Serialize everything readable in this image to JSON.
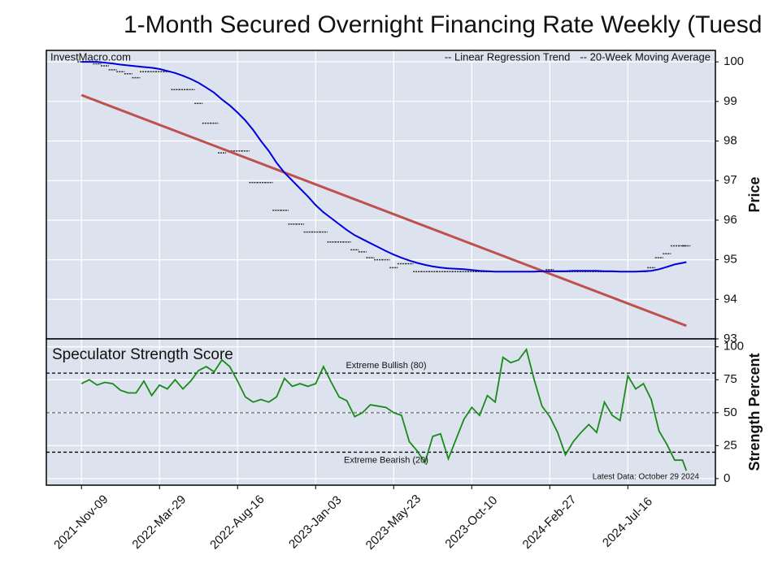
{
  "chart_data": [
    {
      "type": "line",
      "title": "1-Month Secured Overnight Financing Rate Weekly (Tuesd",
      "source": "InvestMacro.com",
      "y_label": "Price",
      "legend": "upper right",
      "grid": true,
      "xlim": [
        "2021-09-07",
        "2024-12-20"
      ],
      "ylim": [
        93,
        100.29
      ],
      "yticks": [
        93,
        94,
        95,
        96,
        97,
        98,
        99,
        100
      ],
      "x": [
        "2021-11-09",
        "2021-11-23",
        "2021-12-07",
        "2021-12-21",
        "2022-01-04",
        "2022-01-18",
        "2022-02-01",
        "2022-02-15",
        "2022-03-01",
        "2022-03-15",
        "2022-03-29",
        "2022-04-12",
        "2022-04-26",
        "2022-05-10",
        "2022-05-24",
        "2022-06-07",
        "2022-06-21",
        "2022-07-05",
        "2022-07-19",
        "2022-08-02",
        "2022-08-16",
        "2022-08-30",
        "2022-09-13",
        "2022-09-27",
        "2022-10-11",
        "2022-10-25",
        "2022-11-08",
        "2022-11-22",
        "2022-12-06",
        "2022-12-20",
        "2023-01-03",
        "2023-01-17",
        "2023-01-31",
        "2023-02-14",
        "2023-02-28",
        "2023-03-14",
        "2023-03-28",
        "2023-04-11",
        "2023-04-25",
        "2023-05-09",
        "2023-05-23",
        "2023-06-06",
        "2023-06-20",
        "2023-07-04",
        "2023-07-18",
        "2023-08-01",
        "2023-08-15",
        "2023-08-29",
        "2023-09-12",
        "2023-09-26",
        "2023-10-10",
        "2023-10-24",
        "2023-11-07",
        "2023-11-21",
        "2023-12-05",
        "2023-12-19",
        "2024-01-02",
        "2024-01-16",
        "2024-01-30",
        "2024-02-13",
        "2024-02-27",
        "2024-03-12",
        "2024-03-26",
        "2024-04-09",
        "2024-04-23",
        "2024-05-07",
        "2024-05-21",
        "2024-06-04",
        "2024-06-18",
        "2024-07-02",
        "2024-07-16",
        "2024-07-30",
        "2024-08-13",
        "2024-08-27",
        "2024-09-10",
        "2024-09-24",
        "2024-10-08",
        "2024-10-22",
        "2024-10-29"
      ],
      "price": {
        "color": "#333333",
        "values": [
          100.0,
          100.0,
          99.95,
          99.9,
          99.8,
          99.75,
          99.7,
          99.6,
          99.75,
          99.75,
          99.75,
          99.75,
          99.3,
          99.3,
          99.3,
          98.95,
          98.45,
          98.45,
          97.7,
          97.75,
          97.75,
          97.75,
          96.95,
          96.95,
          96.95,
          96.25,
          96.25,
          95.9,
          95.9,
          95.7,
          95.7,
          95.7,
          95.45,
          95.45,
          95.45,
          95.25,
          95.2,
          95.05,
          95.0,
          95.0,
          94.8,
          94.9,
          94.9,
          94.7,
          94.7,
          94.7,
          94.7,
          94.7,
          94.7,
          94.7,
          94.7,
          94.7,
          94.7,
          94.7,
          94.7,
          94.7,
          94.7,
          94.7,
          94.7,
          94.7,
          94.75,
          94.7,
          94.7,
          94.7,
          94.7,
          94.7,
          94.7,
          94.7,
          94.7,
          94.7,
          94.7,
          94.7,
          94.7,
          94.8,
          95.05,
          95.15,
          95.35,
          95.35,
          95.35
        ]
      },
      "series": [
        {
          "name": "-- Linear Regression Trend",
          "color": "#c0504d",
          "x": [
            "2021-11-09",
            "2024-10-29"
          ],
          "values": [
            99.16,
            93.33
          ]
        },
        {
          "name": "-- 20-Week Moving Average",
          "color": "#0000dd",
          "values": [
            100.0,
            100.0,
            100.0,
            99.98,
            99.96,
            99.93,
            99.91,
            99.89,
            99.87,
            99.85,
            99.82,
            99.77,
            99.72,
            99.65,
            99.57,
            99.47,
            99.35,
            99.22,
            99.05,
            98.9,
            98.72,
            98.52,
            98.28,
            98.0,
            97.75,
            97.45,
            97.2,
            97.0,
            96.8,
            96.6,
            96.38,
            96.2,
            96.05,
            95.9,
            95.75,
            95.62,
            95.52,
            95.42,
            95.32,
            95.22,
            95.13,
            95.05,
            94.98,
            94.92,
            94.87,
            94.83,
            94.8,
            94.78,
            94.77,
            94.76,
            94.74,
            94.72,
            94.71,
            94.7,
            94.7,
            94.7,
            94.7,
            94.7,
            94.7,
            94.71,
            94.71,
            94.71,
            94.71,
            94.72,
            94.72,
            94.72,
            94.72,
            94.71,
            94.71,
            94.7,
            94.7,
            94.7,
            94.71,
            94.72,
            94.76,
            94.82,
            94.88,
            94.92,
            94.94
          ]
        }
      ]
    },
    {
      "type": "line",
      "title": "Speculator Strength Score",
      "y_label": "Strength Percent",
      "annotation": "Latest Data: October 29 2024",
      "grid": true,
      "color": "#1a8a1a",
      "xlim": [
        "2021-09-07",
        "2024-12-20"
      ],
      "ylim": [
        -5,
        106
      ],
      "yticks": [
        0,
        25,
        50,
        75,
        100
      ],
      "xticks": [
        {
          "value": "2021-11-09",
          "label": "2021-Nov-09"
        },
        {
          "value": "2022-03-29",
          "label": "2022-Mar-29"
        },
        {
          "value": "2022-08-16",
          "label": "2022-Aug-16"
        },
        {
          "value": "2023-01-03",
          "label": "2023-Jan-03"
        },
        {
          "value": "2023-05-23",
          "label": "2023-May-23"
        },
        {
          "value": "2023-10-10",
          "label": "2023-Oct-10"
        },
        {
          "value": "2024-02-27",
          "label": "2024-Feb-27"
        },
        {
          "value": "2024-07-16",
          "label": "2024-Jul-16"
        }
      ],
      "hlines": [
        {
          "value": 80,
          "label": "Extreme Bullish (80)",
          "color": "#000000"
        },
        {
          "value": 50,
          "color": "#777777"
        },
        {
          "value": 20,
          "label": "Extreme Bearish (20)",
          "color": "#000000"
        }
      ],
      "x": [
        "2021-11-09",
        "2021-11-23",
        "2021-12-07",
        "2021-12-21",
        "2022-01-04",
        "2022-01-18",
        "2022-02-01",
        "2022-02-15",
        "2022-03-01",
        "2022-03-15",
        "2022-03-29",
        "2022-04-12",
        "2022-04-26",
        "2022-05-10",
        "2022-05-24",
        "2022-06-07",
        "2022-06-21",
        "2022-07-05",
        "2022-07-19",
        "2022-08-02",
        "2022-08-16",
        "2022-08-30",
        "2022-09-13",
        "2022-09-27",
        "2022-10-11",
        "2022-10-25",
        "2022-11-08",
        "2022-11-22",
        "2022-12-06",
        "2022-12-20",
        "2023-01-03",
        "2023-01-17",
        "2023-01-31",
        "2023-02-14",
        "2023-02-28",
        "2023-03-14",
        "2023-03-28",
        "2023-04-11",
        "2023-04-25",
        "2023-05-09",
        "2023-05-23",
        "2023-06-06",
        "2023-06-20",
        "2023-07-04",
        "2023-07-18",
        "2023-08-01",
        "2023-08-15",
        "2023-08-29",
        "2023-09-12",
        "2023-09-26",
        "2023-10-10",
        "2023-10-24",
        "2023-11-07",
        "2023-11-21",
        "2023-12-05",
        "2023-12-19",
        "2024-01-02",
        "2024-01-16",
        "2024-01-30",
        "2024-02-13",
        "2024-02-27",
        "2024-03-12",
        "2024-03-26",
        "2024-04-09",
        "2024-04-23",
        "2024-05-07",
        "2024-05-21",
        "2024-06-04",
        "2024-06-18",
        "2024-07-02",
        "2024-07-16",
        "2024-07-30",
        "2024-08-13",
        "2024-08-27",
        "2024-09-10",
        "2024-09-24",
        "2024-10-08",
        "2024-10-22",
        "2024-10-29"
      ],
      "values": [
        72,
        75,
        71,
        73,
        72,
        67,
        65,
        65,
        74,
        63,
        71,
        68,
        75,
        68,
        74,
        82,
        85,
        81,
        90,
        85,
        74,
        62,
        58,
        60,
        58,
        62,
        76,
        70,
        72,
        70,
        72,
        85,
        73,
        62,
        59,
        47,
        50,
        56,
        55,
        54,
        50,
        48,
        28,
        21,
        12,
        32,
        34,
        15,
        30,
        45,
        54,
        48,
        63,
        58,
        92,
        88,
        90,
        98,
        75,
        55,
        47,
        35,
        18,
        28,
        35,
        41,
        35,
        58,
        48,
        44,
        78,
        68,
        72,
        60,
        36,
        26,
        14,
        14,
        6
      ]
    }
  ]
}
